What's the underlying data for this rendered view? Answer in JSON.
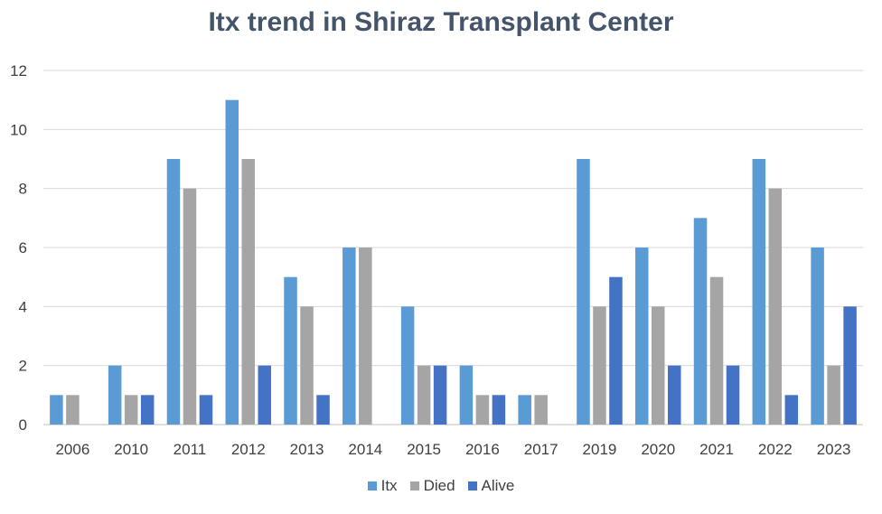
{
  "chart_data": {
    "type": "bar",
    "title": "Itx trend in Shiraz Transplant Center",
    "xlabel": "",
    "ylabel": "",
    "ylim": [
      0,
      12
    ],
    "yticks": [
      0,
      2,
      4,
      6,
      8,
      10,
      12
    ],
    "grid": true,
    "legend_position": "bottom",
    "categories": [
      "2006",
      "2010",
      "2011",
      "2012",
      "2013",
      "2014",
      "2015",
      "2016",
      "2017",
      "2019",
      "2020",
      "2021",
      "2022",
      "2023"
    ],
    "series": [
      {
        "name": "Itx",
        "color": "#5b9bd5",
        "values": [
          1,
          2,
          9,
          11,
          5,
          6,
          4,
          2,
          1,
          9,
          6,
          7,
          9,
          6
        ]
      },
      {
        "name": "Died",
        "color": "#a5a5a5",
        "values": [
          1,
          1,
          8,
          9,
          4,
          6,
          2,
          1,
          1,
          4,
          4,
          5,
          8,
          2
        ]
      },
      {
        "name": "Alive",
        "color": "#4472c4",
        "values": [
          0,
          1,
          1,
          2,
          1,
          0,
          2,
          1,
          0,
          5,
          2,
          2,
          1,
          4
        ]
      }
    ]
  }
}
